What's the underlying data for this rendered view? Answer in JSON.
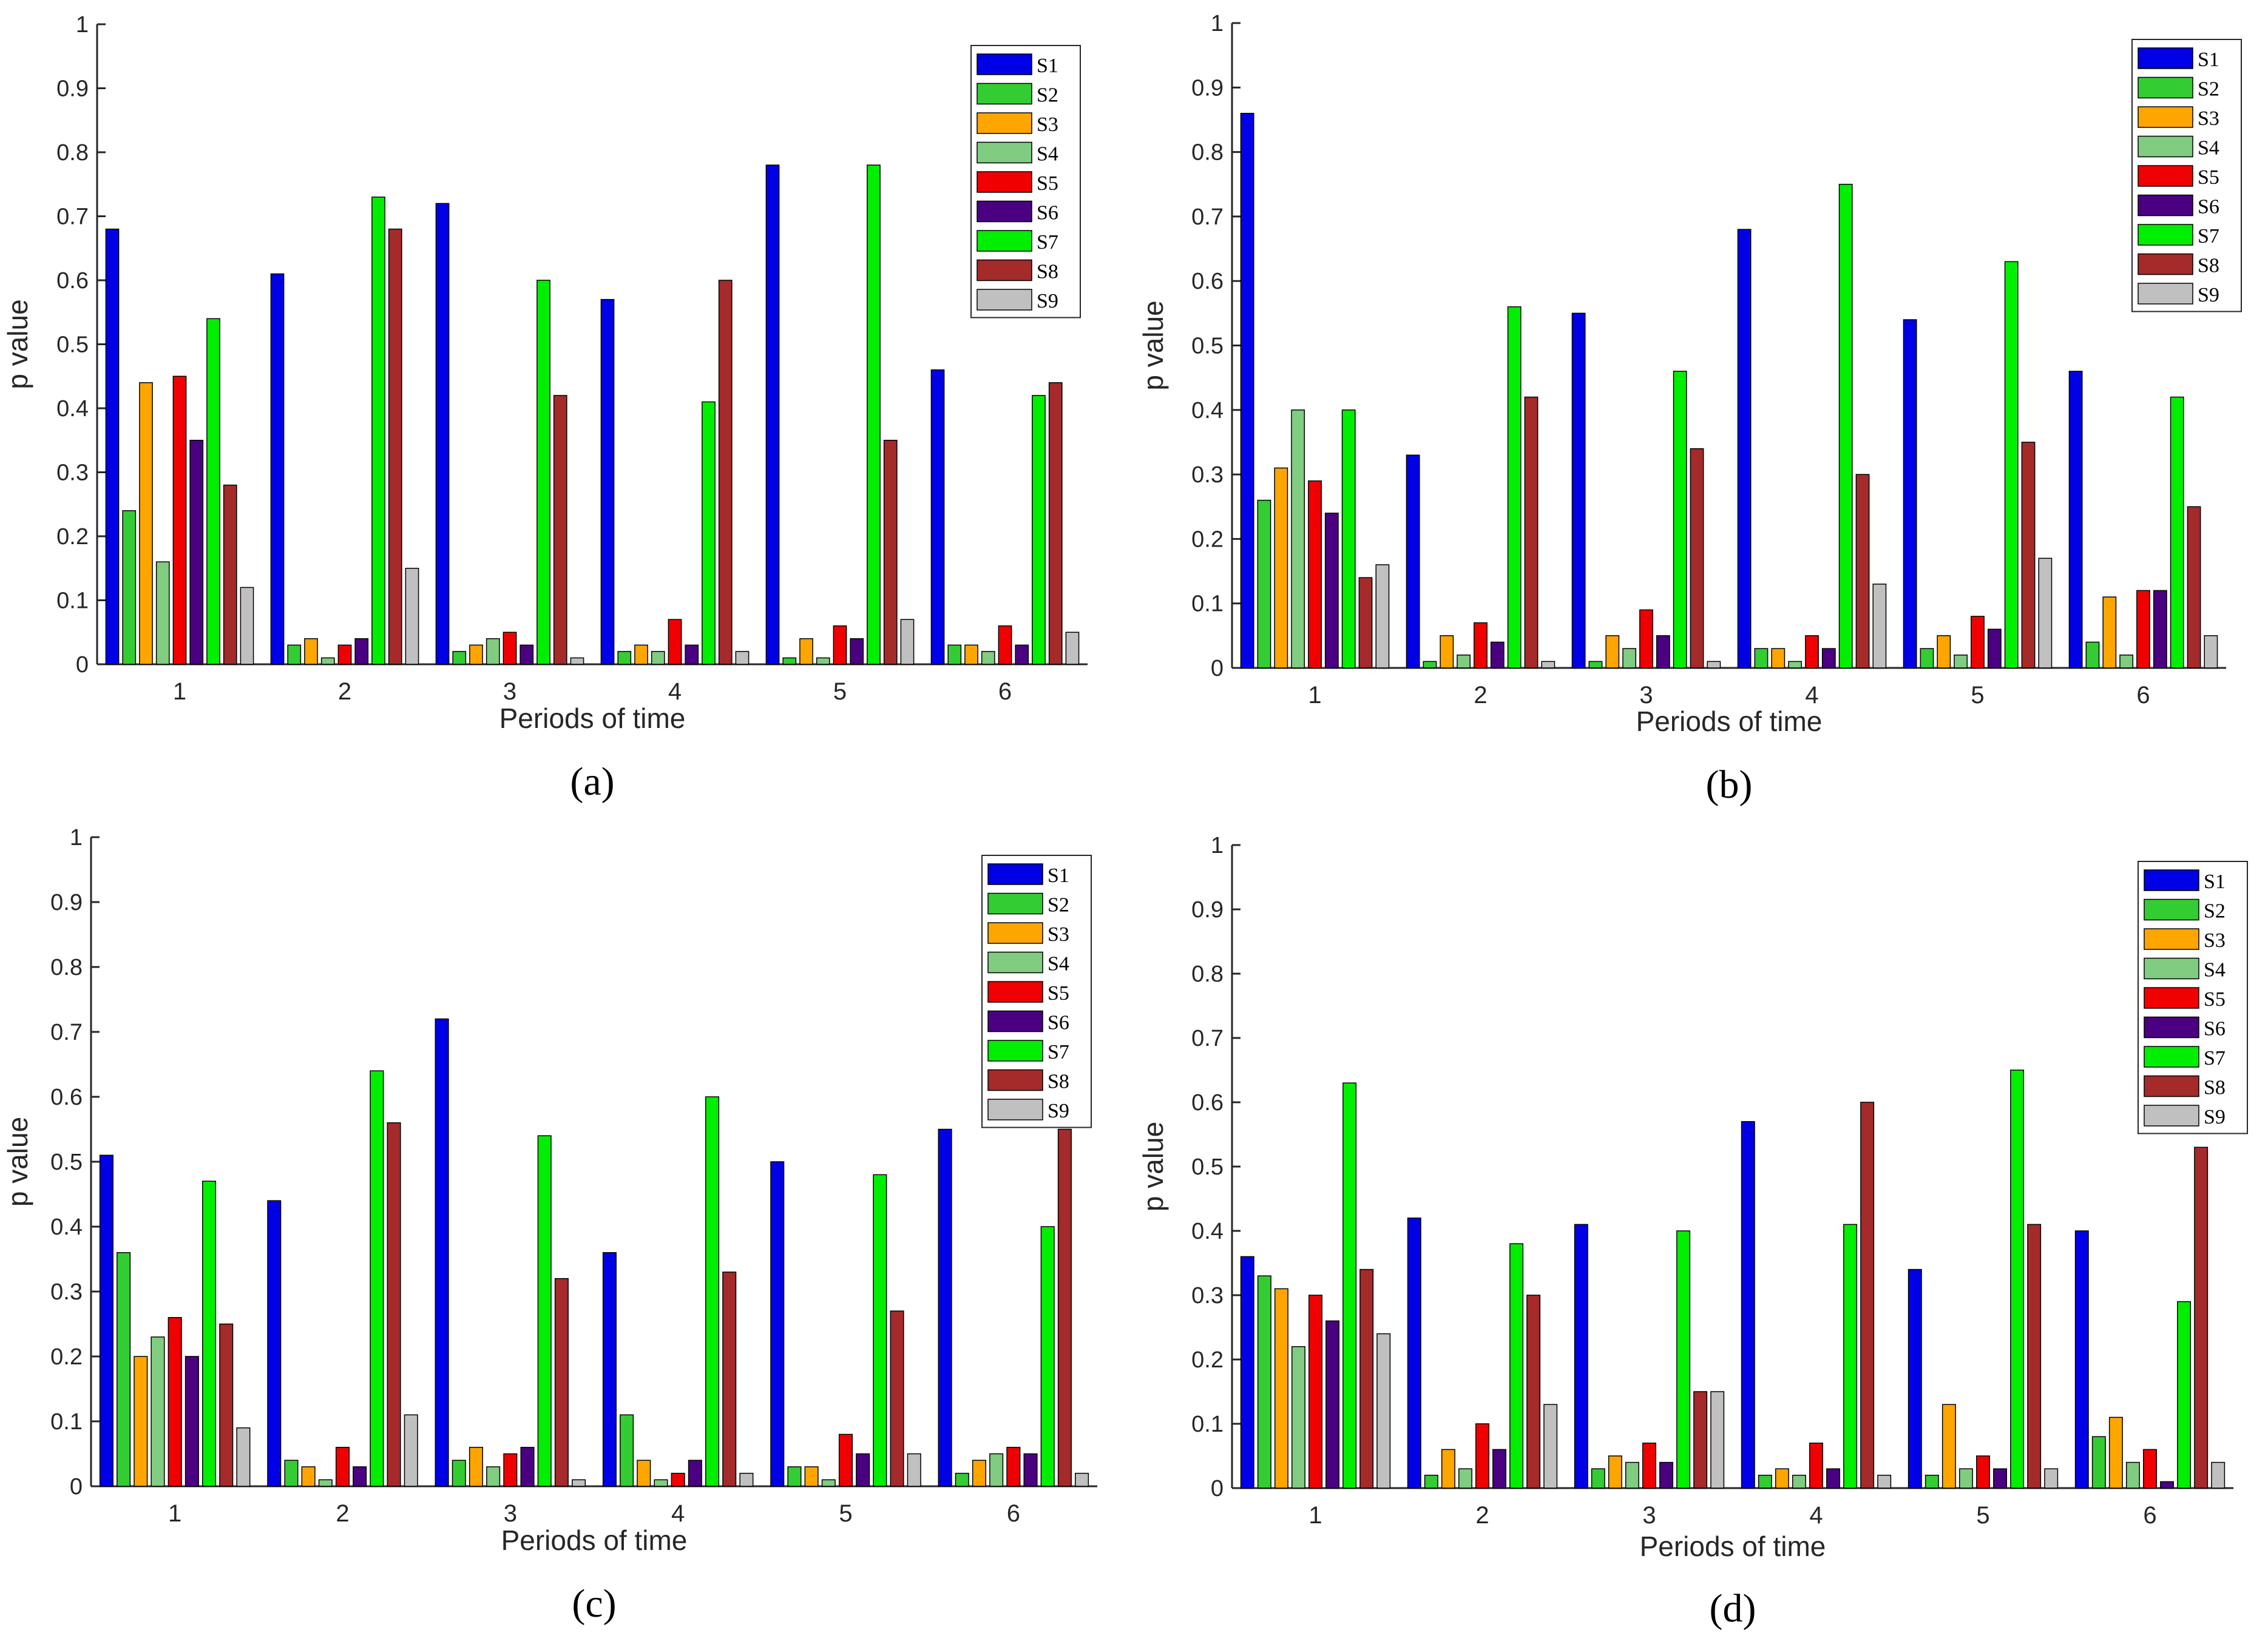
{
  "series_names": [
    "S1",
    "S2",
    "S3",
    "S4",
    "S5",
    "S6",
    "S7",
    "S8",
    "S9"
  ],
  "series_colors": [
    "#0000e6",
    "#33cc33",
    "#ffa500",
    "#80cc80",
    "#f00000",
    "#4b0082",
    "#00ee00",
    "#a52a2a",
    "#c0c0c0"
  ],
  "chart_data": [
    {
      "type": "bar",
      "caption": "(a)",
      "xlabel": "Periods of time",
      "ylabel": "p value",
      "categories": [
        "1",
        "2",
        "3",
        "4",
        "5",
        "6"
      ],
      "ylim": [
        0,
        1
      ],
      "yticks": [
        "0",
        "0.1",
        "0.2",
        "0.3",
        "0.4",
        "0.5",
        "0.6",
        "0.7",
        "0.8",
        "0.9",
        "1"
      ],
      "legend_position": "top-right",
      "series": [
        {
          "name": "S1",
          "values": [
            0.68,
            0.61,
            0.72,
            0.57,
            0.78,
            0.46
          ]
        },
        {
          "name": "S2",
          "values": [
            0.24,
            0.03,
            0.02,
            0.02,
            0.01,
            0.03
          ]
        },
        {
          "name": "S3",
          "values": [
            0.44,
            0.04,
            0.03,
            0.03,
            0.04,
            0.03
          ]
        },
        {
          "name": "S4",
          "values": [
            0.16,
            0.01,
            0.04,
            0.02,
            0.01,
            0.02
          ]
        },
        {
          "name": "S5",
          "values": [
            0.45,
            0.03,
            0.05,
            0.07,
            0.06,
            0.06
          ]
        },
        {
          "name": "S6",
          "values": [
            0.35,
            0.04,
            0.03,
            0.03,
            0.04,
            0.03
          ]
        },
        {
          "name": "S7",
          "values": [
            0.54,
            0.73,
            0.6,
            0.41,
            0.78,
            0.42
          ]
        },
        {
          "name": "S8",
          "values": [
            0.28,
            0.68,
            0.42,
            0.6,
            0.35,
            0.44
          ]
        },
        {
          "name": "S9",
          "values": [
            0.12,
            0.15,
            0.01,
            0.02,
            0.07,
            0.05
          ]
        }
      ]
    },
    {
      "type": "bar",
      "caption": "(b)",
      "xlabel": "Periods of time",
      "ylabel": "p value",
      "categories": [
        "1",
        "2",
        "3",
        "4",
        "5",
        "6"
      ],
      "ylim": [
        0,
        1
      ],
      "yticks": [
        "0",
        "0.1",
        "0.2",
        "0.3",
        "0.4",
        "0.5",
        "0.6",
        "0.7",
        "0.8",
        "0.9",
        "1"
      ],
      "legend_position": "top-right",
      "series": [
        {
          "name": "S1",
          "values": [
            0.86,
            0.33,
            0.55,
            0.68,
            0.54,
            0.46
          ]
        },
        {
          "name": "S2",
          "values": [
            0.26,
            0.01,
            0.01,
            0.03,
            0.03,
            0.04
          ]
        },
        {
          "name": "S3",
          "values": [
            0.31,
            0.05,
            0.05,
            0.03,
            0.05,
            0.11
          ]
        },
        {
          "name": "S4",
          "values": [
            0.4,
            0.02,
            0.03,
            0.01,
            0.02,
            0.02
          ]
        },
        {
          "name": "S5",
          "values": [
            0.29,
            0.07,
            0.09,
            0.05,
            0.08,
            0.12
          ]
        },
        {
          "name": "S6",
          "values": [
            0.24,
            0.04,
            0.05,
            0.03,
            0.06,
            0.12
          ]
        },
        {
          "name": "S7",
          "values": [
            0.4,
            0.56,
            0.46,
            0.75,
            0.63,
            0.42
          ]
        },
        {
          "name": "S8",
          "values": [
            0.14,
            0.42,
            0.34,
            0.3,
            0.35,
            0.25
          ]
        },
        {
          "name": "S9",
          "values": [
            0.16,
            0.01,
            0.01,
            0.13,
            0.17,
            0.05
          ]
        }
      ]
    },
    {
      "type": "bar",
      "caption": "(c)",
      "xlabel": "Periods of time",
      "ylabel": "p value",
      "categories": [
        "1",
        "2",
        "3",
        "4",
        "5",
        "6"
      ],
      "ylim": [
        0,
        1
      ],
      "yticks": [
        "0",
        "0.1",
        "0.2",
        "0.3",
        "0.4",
        "0.5",
        "0.6",
        "0.7",
        "0.8",
        "0.9",
        "1"
      ],
      "legend_position": "top-right",
      "series": [
        {
          "name": "S1",
          "values": [
            0.51,
            0.44,
            0.72,
            0.36,
            0.5,
            0.55
          ]
        },
        {
          "name": "S2",
          "values": [
            0.36,
            0.04,
            0.04,
            0.11,
            0.03,
            0.02
          ]
        },
        {
          "name": "S3",
          "values": [
            0.2,
            0.03,
            0.06,
            0.04,
            0.03,
            0.04
          ]
        },
        {
          "name": "S4",
          "values": [
            0.23,
            0.01,
            0.03,
            0.01,
            0.01,
            0.05
          ]
        },
        {
          "name": "S5",
          "values": [
            0.26,
            0.06,
            0.05,
            0.02,
            0.08,
            0.06
          ]
        },
        {
          "name": "S6",
          "values": [
            0.2,
            0.03,
            0.06,
            0.04,
            0.05,
            0.05
          ]
        },
        {
          "name": "S7",
          "values": [
            0.47,
            0.64,
            0.54,
            0.6,
            0.48,
            0.4
          ]
        },
        {
          "name": "S8",
          "values": [
            0.25,
            0.56,
            0.32,
            0.33,
            0.27,
            0.55
          ]
        },
        {
          "name": "S9",
          "values": [
            0.09,
            0.11,
            0.01,
            0.02,
            0.05,
            0.02
          ]
        }
      ]
    },
    {
      "type": "bar",
      "caption": "(d)",
      "xlabel": "Periods of time",
      "ylabel": "p value",
      "categories": [
        "1",
        "2",
        "3",
        "4",
        "5",
        "6"
      ],
      "ylim": [
        0,
        1
      ],
      "yticks": [
        "0",
        "0.1",
        "0.2",
        "0.3",
        "0.4",
        "0.5",
        "0.6",
        "0.7",
        "0.8",
        "0.9",
        "1"
      ],
      "legend_position": "top-right",
      "series": [
        {
          "name": "S1",
          "values": [
            0.36,
            0.42,
            0.41,
            0.57,
            0.34,
            0.4
          ]
        },
        {
          "name": "S2",
          "values": [
            0.33,
            0.02,
            0.03,
            0.02,
            0.02,
            0.08
          ]
        },
        {
          "name": "S3",
          "values": [
            0.31,
            0.06,
            0.05,
            0.03,
            0.13,
            0.11
          ]
        },
        {
          "name": "S4",
          "values": [
            0.22,
            0.03,
            0.04,
            0.02,
            0.03,
            0.04
          ]
        },
        {
          "name": "S5",
          "values": [
            0.3,
            0.1,
            0.07,
            0.07,
            0.05,
            0.06
          ]
        },
        {
          "name": "S6",
          "values": [
            0.26,
            0.06,
            0.04,
            0.03,
            0.03,
            0.01
          ]
        },
        {
          "name": "S7",
          "values": [
            0.63,
            0.38,
            0.4,
            0.41,
            0.65,
            0.29
          ]
        },
        {
          "name": "S8",
          "values": [
            0.34,
            0.3,
            0.15,
            0.6,
            0.41,
            0.53
          ]
        },
        {
          "name": "S9",
          "values": [
            0.24,
            0.13,
            0.15,
            0.02,
            0.03,
            0.04
          ]
        }
      ]
    }
  ]
}
